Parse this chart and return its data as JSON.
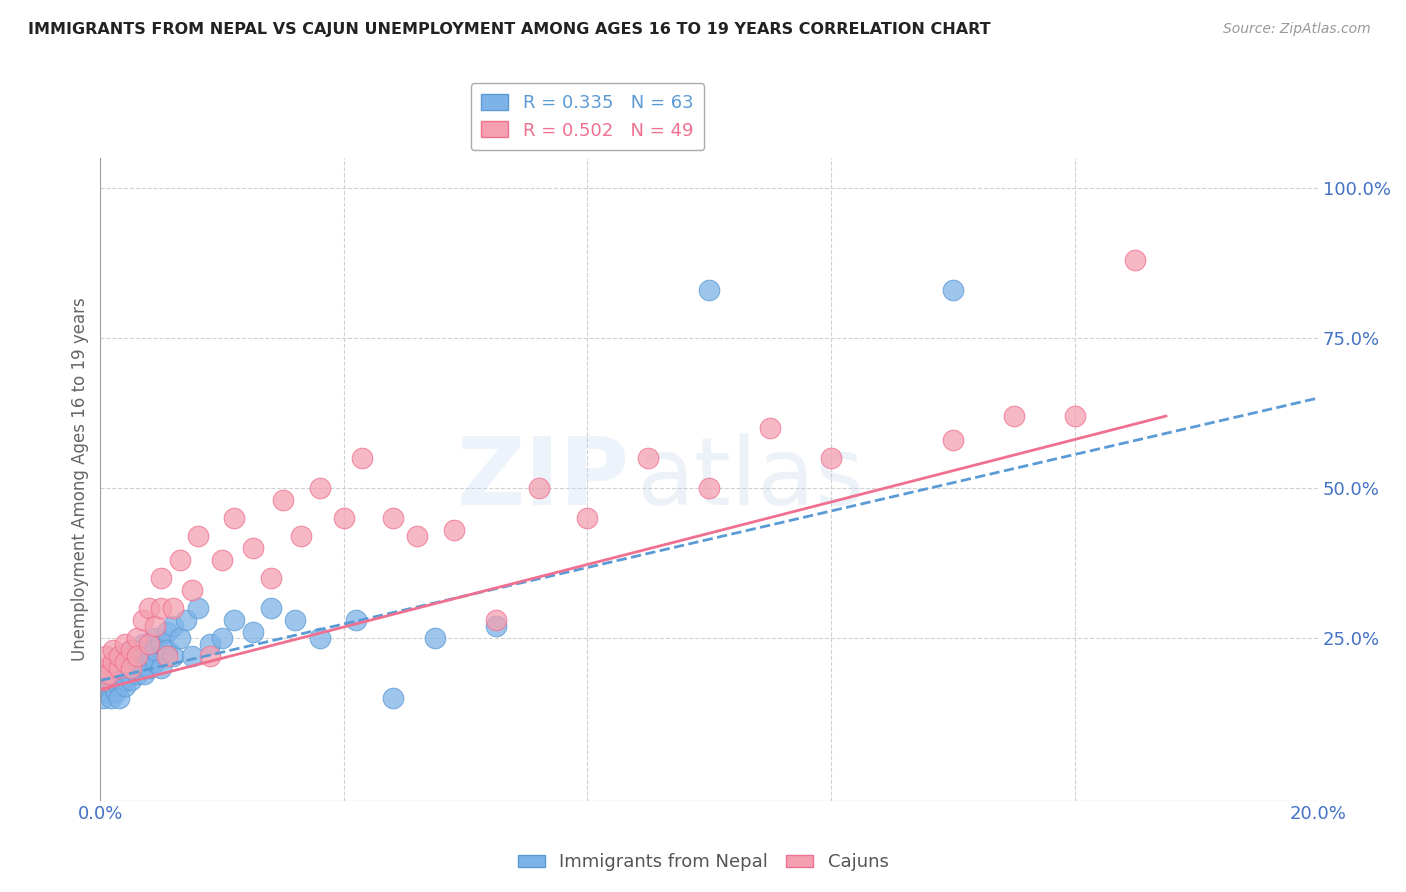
{
  "title": "IMMIGRANTS FROM NEPAL VS CAJUN UNEMPLOYMENT AMONG AGES 16 TO 19 YEARS CORRELATION CHART",
  "source": "Source: ZipAtlas.com",
  "ylabel": "Unemployment Among Ages 16 to 19 years",
  "xlim": [
    0.0,
    0.2
  ],
  "ylim": [
    -0.02,
    1.05
  ],
  "R_nepal": 0.335,
  "N_nepal": 63,
  "R_cajun": 0.502,
  "N_cajun": 49,
  "color_nepal": "#7eb3e8",
  "color_cajun": "#f4a0b0",
  "color_nepal_line": "#5b9bd5",
  "color_cajun_line": "#f07090",
  "color_title": "#222222",
  "color_axis_label": "#4472c4",
  "color_source": "#999999",
  "background_color": "#ffffff",
  "grid_color": "#d0d0d0",
  "watermark_zip": "ZIP",
  "watermark_atlas": "atlas",
  "nepal_x": [
    0.0005,
    0.001,
    0.0012,
    0.0015,
    0.0018,
    0.002,
    0.002,
    0.002,
    0.0022,
    0.0025,
    0.003,
    0.003,
    0.003,
    0.003,
    0.0032,
    0.0035,
    0.004,
    0.004,
    0.004,
    0.004,
    0.0042,
    0.0045,
    0.005,
    0.005,
    0.005,
    0.0055,
    0.006,
    0.006,
    0.006,
    0.0065,
    0.007,
    0.007,
    0.007,
    0.0072,
    0.008,
    0.008,
    0.0085,
    0.009,
    0.009,
    0.009,
    0.01,
    0.01,
    0.011,
    0.011,
    0.012,
    0.012,
    0.013,
    0.014,
    0.015,
    0.016,
    0.018,
    0.02,
    0.022,
    0.025,
    0.028,
    0.032,
    0.036,
    0.042,
    0.048,
    0.055,
    0.065,
    0.1,
    0.14
  ],
  "nepal_y": [
    0.15,
    0.16,
    0.17,
    0.18,
    0.15,
    0.2,
    0.18,
    0.17,
    0.19,
    0.16,
    0.17,
    0.2,
    0.18,
    0.15,
    0.22,
    0.19,
    0.18,
    0.2,
    0.17,
    0.22,
    0.21,
    0.2,
    0.19,
    0.23,
    0.18,
    0.2,
    0.21,
    0.23,
    0.19,
    0.22,
    0.2,
    0.24,
    0.22,
    0.19,
    0.23,
    0.2,
    0.22,
    0.25,
    0.21,
    0.23,
    0.24,
    0.2,
    0.26,
    0.23,
    0.27,
    0.22,
    0.25,
    0.28,
    0.22,
    0.3,
    0.24,
    0.25,
    0.28,
    0.26,
    0.3,
    0.28,
    0.25,
    0.28,
    0.15,
    0.25,
    0.27,
    0.83,
    0.83
  ],
  "cajun_x": [
    0.0005,
    0.001,
    0.001,
    0.0015,
    0.002,
    0.002,
    0.003,
    0.003,
    0.004,
    0.004,
    0.005,
    0.005,
    0.006,
    0.006,
    0.007,
    0.008,
    0.008,
    0.009,
    0.01,
    0.01,
    0.011,
    0.012,
    0.013,
    0.015,
    0.016,
    0.018,
    0.02,
    0.022,
    0.025,
    0.028,
    0.03,
    0.033,
    0.036,
    0.04,
    0.043,
    0.048,
    0.052,
    0.058,
    0.065,
    0.072,
    0.08,
    0.09,
    0.1,
    0.11,
    0.12,
    0.14,
    0.15,
    0.16,
    0.17
  ],
  "cajun_y": [
    0.18,
    0.2,
    0.22,
    0.19,
    0.21,
    0.23,
    0.2,
    0.22,
    0.24,
    0.21,
    0.23,
    0.2,
    0.25,
    0.22,
    0.28,
    0.24,
    0.3,
    0.27,
    0.3,
    0.35,
    0.22,
    0.3,
    0.38,
    0.33,
    0.42,
    0.22,
    0.38,
    0.45,
    0.4,
    0.35,
    0.48,
    0.42,
    0.5,
    0.45,
    0.55,
    0.45,
    0.42,
    0.43,
    0.28,
    0.5,
    0.45,
    0.55,
    0.5,
    0.6,
    0.55,
    0.58,
    0.62,
    0.62,
    0.88
  ],
  "nepal_line_x0": 0.0,
  "nepal_line_y0": 0.18,
  "nepal_line_x1": 0.2,
  "nepal_line_y1": 0.65,
  "cajun_line_x0": 0.0,
  "cajun_line_y0": 0.165,
  "cajun_line_x1": 0.175,
  "cajun_line_y1": 0.62
}
